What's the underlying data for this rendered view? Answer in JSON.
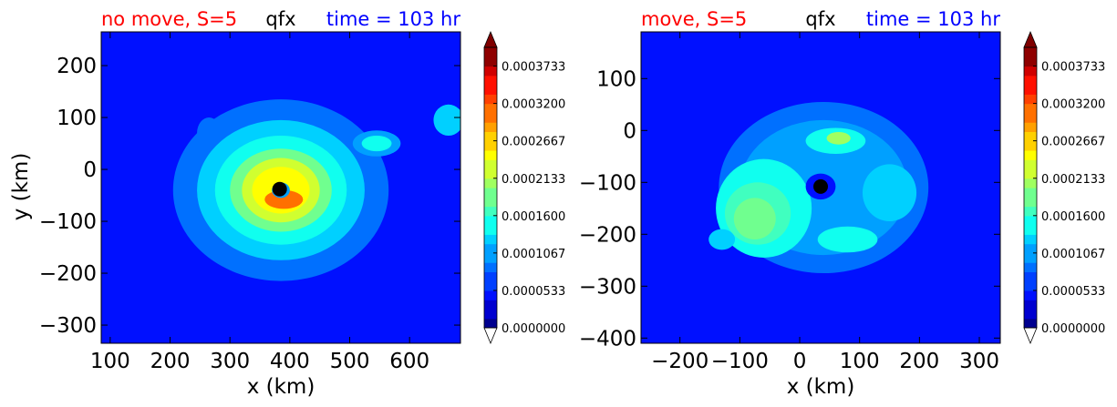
{
  "colormap": [
    "#00008f",
    "#0000d0",
    "#0010ff",
    "#0040ff",
    "#0070ff",
    "#00a0ff",
    "#00d0ff",
    "#10ffef",
    "#40ffbf",
    "#70ff8f",
    "#a0ff60",
    "#d0ff30",
    "#ffff00",
    "#ffd000",
    "#ffa000",
    "#ff7000",
    "#ff4000",
    "#ff1000",
    "#d00000",
    "#8f0000"
  ],
  "colorbar": {
    "ticks": [
      "0.0000000",
      "0.0000533",
      "0.0001067",
      "0.0001600",
      "0.0002133",
      "0.0002667",
      "0.0003200",
      "0.0003733"
    ],
    "tick_values": [
      0.0,
      5.33e-05,
      0.0001067,
      0.00016,
      0.0002133,
      0.0002667,
      0.00032,
      0.0003733
    ],
    "vmin": 0.0,
    "vmax": 0.0004,
    "levels": 30,
    "extend": "both"
  },
  "chart_data": [
    {
      "type": "contourf",
      "title_left": "no move, S=5",
      "title_center": "qfx",
      "title_right": "time = 103 hr",
      "xlabel": "x (km)",
      "ylabel": "y (km)",
      "xlim": [
        85,
        685
      ],
      "ylim": [
        -335,
        265
      ],
      "xticks": [
        100,
        200,
        300,
        400,
        500,
        600
      ],
      "yticks": [
        200,
        100,
        0,
        -100,
        -200,
        -300
      ],
      "xtick_labels": [
        "100",
        "200",
        "300",
        "400",
        "500",
        "600"
      ],
      "ytick_labels": [
        "200",
        "100",
        "0",
        "−100",
        "−200",
        "−300"
      ],
      "background_value": 5e-05,
      "center_marker": {
        "x": 383,
        "y": -38
      },
      "features": [
        {
          "x": 385,
          "y": -40,
          "rx": 180,
          "ry": 175,
          "value": 9e-05
        },
        {
          "x": 385,
          "y": -40,
          "rx": 140,
          "ry": 135,
          "value": 0.00012
        },
        {
          "x": 385,
          "y": -40,
          "rx": 110,
          "ry": 105,
          "value": 0.00015
        },
        {
          "x": 385,
          "y": -40,
          "rx": 85,
          "ry": 80,
          "value": 0.00019
        },
        {
          "x": 385,
          "y": -40,
          "rx": 65,
          "ry": 62,
          "value": 0.00023
        },
        {
          "x": 385,
          "y": -40,
          "rx": 48,
          "ry": 45,
          "value": 0.00026
        },
        {
          "x": 390,
          "y": -58,
          "rx": 32,
          "ry": 18,
          "value": 0.00031
        },
        {
          "x": 385,
          "y": -40,
          "rx": 15,
          "ry": 15,
          "value": 0.0001
        },
        {
          "x": 545,
          "y": 50,
          "rx": 40,
          "ry": 25,
          "value": 0.00011
        },
        {
          "x": 545,
          "y": 50,
          "rx": 25,
          "ry": 15,
          "value": 0.00015
        },
        {
          "x": 665,
          "y": 95,
          "rx": 25,
          "ry": 30,
          "value": 0.00013
        },
        {
          "x": 265,
          "y": 70,
          "rx": 20,
          "ry": 30,
          "value": 9e-05
        }
      ]
    },
    {
      "type": "contourf",
      "title_left": "move, S=5",
      "title_center": "qfx",
      "title_right": "time = 103 hr",
      "xlabel": "x (km)",
      "ylabel": "",
      "xlim": [
        -265,
        335
      ],
      "ylim": [
        -410,
        190
      ],
      "xticks": [
        -200,
        -100,
        0,
        100,
        200,
        300
      ],
      "yticks": [
        100,
        0,
        -100,
        -200,
        -300,
        -400
      ],
      "xtick_labels": [
        "−200",
        "−100",
        "0",
        "100",
        "200",
        "300"
      ],
      "ytick_labels": [
        "100",
        "0",
        "−100",
        "−200",
        "−300",
        "−400"
      ],
      "background_value": 5e-05,
      "center_marker": {
        "x": 35,
        "y": -108
      },
      "features": [
        {
          "x": 40,
          "y": -110,
          "rx": 175,
          "ry": 165,
          "value": 8e-05
        },
        {
          "x": 40,
          "y": -110,
          "rx": 140,
          "ry": 130,
          "value": 0.00011
        },
        {
          "x": -60,
          "y": -150,
          "rx": 80,
          "ry": 95,
          "value": 0.00014
        },
        {
          "x": -70,
          "y": -160,
          "rx": 55,
          "ry": 60,
          "value": 0.00017
        },
        {
          "x": -75,
          "y": -170,
          "rx": 35,
          "ry": 40,
          "value": 0.00019
        },
        {
          "x": 150,
          "y": -120,
          "rx": 45,
          "ry": 55,
          "value": 0.00013
        },
        {
          "x": 60,
          "y": -20,
          "rx": 50,
          "ry": 25,
          "value": 0.00014
        },
        {
          "x": 65,
          "y": -15,
          "rx": 20,
          "ry": 12,
          "value": 0.00021
        },
        {
          "x": 80,
          "y": -210,
          "rx": 50,
          "ry": 25,
          "value": 0.00014
        },
        {
          "x": -130,
          "y": -210,
          "rx": 22,
          "ry": 20,
          "value": 0.00013
        },
        {
          "x": 35,
          "y": -108,
          "rx": 25,
          "ry": 25,
          "value": 4e-05
        }
      ]
    }
  ]
}
